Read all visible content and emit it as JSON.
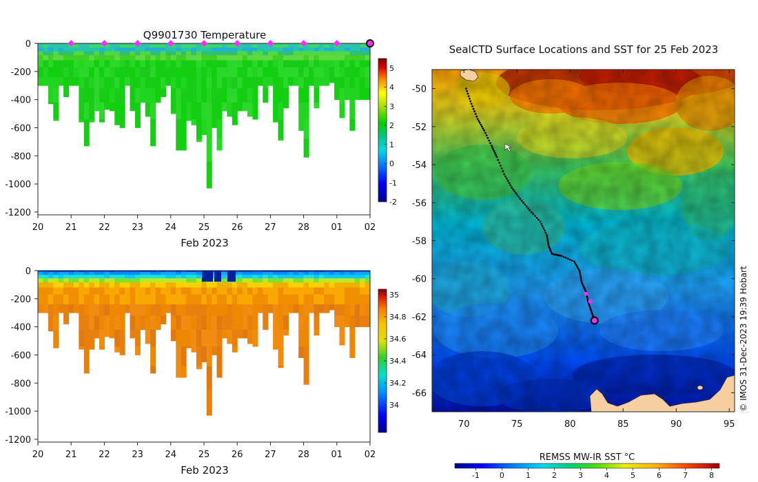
{
  "chart_data": [
    {
      "type": "heatmap",
      "title": "Q9901730  Temperature",
      "xlabel": "Feb 2023",
      "ylabel": "",
      "xlim": [
        20,
        30
      ],
      "ylim": [
        -1200,
        0
      ],
      "x_tick_labels": [
        "20",
        "21",
        "22",
        "23",
        "24",
        "25",
        "26",
        "27",
        "28",
        "01",
        "02"
      ],
      "y_ticks": [
        0,
        -200,
        -400,
        -600,
        -800,
        -1000,
        -1200
      ],
      "colorbar": {
        "min": -2,
        "max": 5.5,
        "ticks": [
          5,
          4,
          3,
          2,
          1,
          0,
          -1,
          -2
        ]
      },
      "surface_markers_day": [
        21,
        22,
        23,
        24,
        25,
        26,
        27,
        28,
        29
      ],
      "current_marker_day": 30,
      "profile_max_depth_m": [
        300,
        300,
        430,
        550,
        300,
        380,
        300,
        300,
        560,
        730,
        560,
        480,
        560,
        470,
        480,
        580,
        600,
        300,
        480,
        600,
        420,
        520,
        730,
        420,
        380,
        300,
        500,
        760,
        760,
        550,
        580,
        700,
        650,
        1030,
        600,
        760,
        480,
        520,
        580,
        480,
        480,
        520,
        540,
        300,
        420,
        300,
        560,
        690,
        460,
        300,
        300,
        620,
        810,
        300,
        460,
        300,
        300,
        280,
        400,
        530,
        400,
        620,
        400,
        400,
        400
      ]
    },
    {
      "type": "heatmap",
      "title": "",
      "xlabel": "Feb 2023",
      "ylabel": "",
      "xlim": [
        20,
        30
      ],
      "ylim": [
        -1200,
        0
      ],
      "x_tick_labels": [
        "20",
        "21",
        "22",
        "23",
        "24",
        "25",
        "26",
        "27",
        "28",
        "01",
        "02"
      ],
      "y_ticks": [
        0,
        -200,
        -400,
        -600,
        -800,
        -1000,
        -1200
      ],
      "colorbar": {
        "min": 33.75,
        "max": 35.05,
        "ticks": [
          35,
          34.8,
          34.6,
          34.4,
          34.2,
          34
        ]
      }
    },
    {
      "type": "heatmap",
      "title": "SealCTD Surface Locations and SST for 25 Feb 2023",
      "xlabel": "",
      "ylabel": "",
      "xlim": [
        67,
        95.5
      ],
      "ylim": [
        -67,
        -49
      ],
      "x_ticks": [
        70,
        75,
        80,
        85,
        90,
        95
      ],
      "y_ticks": [
        -50,
        -52,
        -54,
        -56,
        -58,
        -60,
        -62,
        -64,
        -66
      ],
      "colorbar": {
        "label": "REMSS MW-IR SST °C",
        "min": -1.8,
        "max": 8.3,
        "ticks": [
          -1,
          0,
          1,
          2,
          3,
          4,
          5,
          6,
          7,
          8
        ]
      },
      "track_lon": [
        70.2,
        70.7,
        71.3,
        71.9,
        72.6,
        73.1,
        73.8,
        74.5,
        75.3,
        76.2,
        77.2,
        77.8,
        78.0,
        78.3,
        79.2,
        80.4,
        80.9,
        81.1,
        81.5,
        81.7,
        82.0,
        82.3
      ],
      "track_lat": [
        -50.0,
        -50.8,
        -51.6,
        -52.2,
        -53.0,
        -53.6,
        -54.5,
        -55.2,
        -55.8,
        -56.4,
        -57.0,
        -57.7,
        -58.3,
        -58.7,
        -58.8,
        -59.1,
        -59.6,
        -60.2,
        -60.7,
        -61.2,
        -61.7,
        -62.2
      ],
      "magenta_points": [
        [
          81.5,
          -60.8
        ],
        [
          81.9,
          -61.2
        ]
      ],
      "current_location": [
        82.3,
        -62.2
      ],
      "credit": "© IMOS 31-Dec-2023 19:39 Hobart"
    }
  ],
  "colors": {
    "marker_magenta": "#ff2bff",
    "land": "#f8cfa0",
    "track": "#000000"
  }
}
